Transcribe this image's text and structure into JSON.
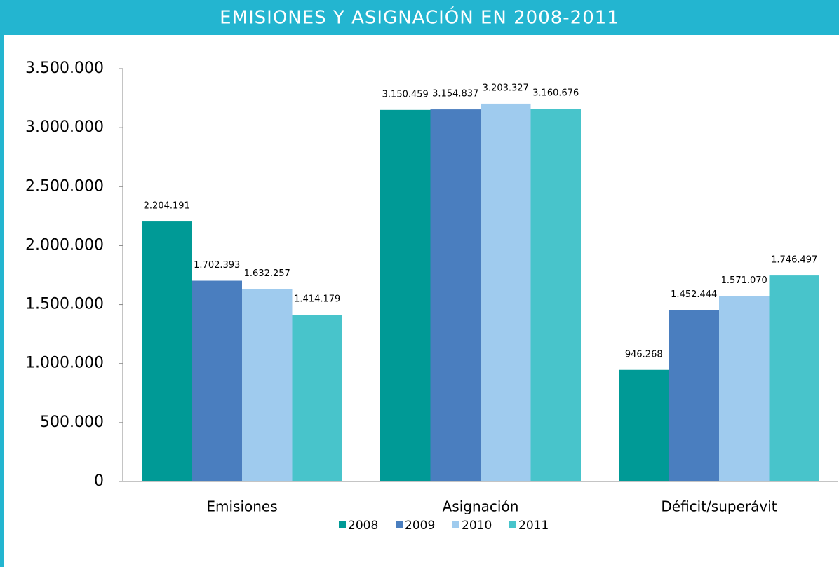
{
  "chart_data": {
    "type": "bar",
    "title": "EMISIONES Y ASIGNACIÓN EN 2008-2011",
    "categories": [
      "Emisiones",
      "Asignación",
      "Déficit/superávit"
    ],
    "series": [
      {
        "name": "2008",
        "color": "#009a96",
        "values": [
          2204191,
          3150459,
          946268
        ],
        "value_labels": [
          "2.204.191",
          "3.150.459",
          "946.268"
        ]
      },
      {
        "name": "2009",
        "color": "#4a7ebf",
        "values": [
          1702393,
          3154837,
          1452444
        ],
        "value_labels": [
          "1.702.393",
          "3.154.837",
          "1.452.444"
        ]
      },
      {
        "name": "2010",
        "color": "#9fcbee",
        "values": [
          1632257,
          3203327,
          1571070
        ],
        "value_labels": [
          "1.632.257",
          "3.203.327",
          "1.571.070"
        ]
      },
      {
        "name": "2011",
        "color": "#48c4cb",
        "values": [
          1414179,
          3160676,
          1746497
        ],
        "value_labels": [
          "1.414.179",
          "3.160.676",
          "1.746.497"
        ]
      }
    ],
    "ylim": [
      0,
      3500000
    ],
    "yticks": [
      0,
      {
        "value": 500000,
        "label": "500.000"
      },
      {
        "value": 1000000,
        "label": "1.000.000"
      },
      {
        "value": 1500000,
        "label": "1.500.000"
      },
      {
        "value": 2000000,
        "label": "2.000.000"
      },
      {
        "value": 2500000,
        "label": "2.500.000"
      },
      {
        "value": 3000000,
        "label": "3.000.000"
      },
      {
        "value": 3500000,
        "label": "3.500.000"
      }
    ],
    "legend": "bottom"
  }
}
